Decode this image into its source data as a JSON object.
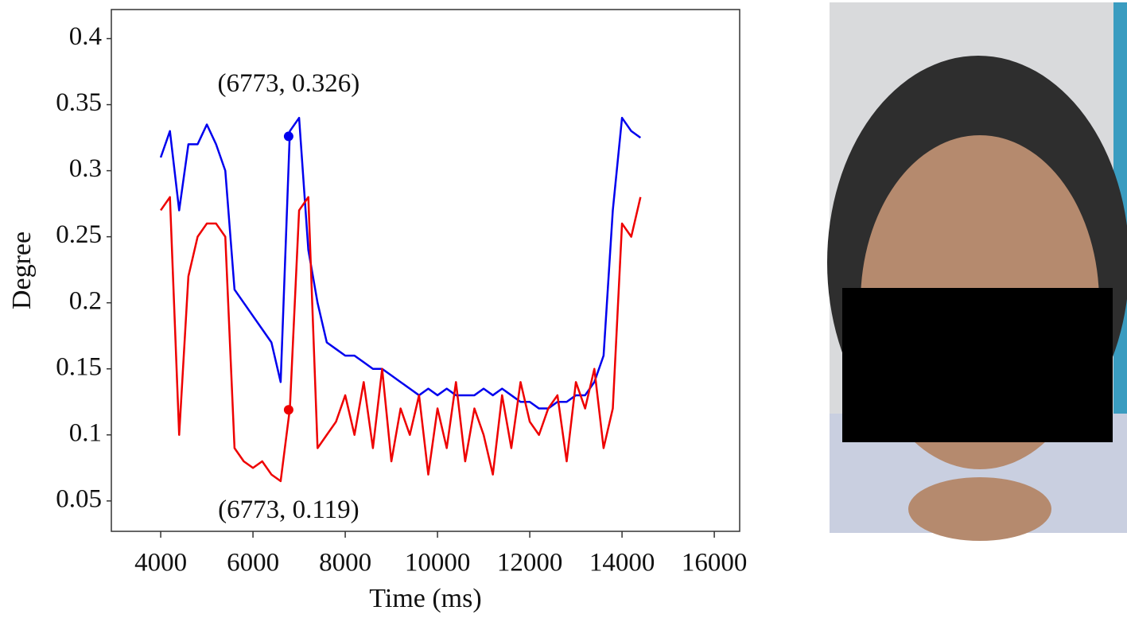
{
  "chart_data": {
    "type": "line",
    "x_label": "Time (ms)",
    "y_label": "Degree",
    "xlim": [
      2930,
      16550
    ],
    "ylim": [
      0.027,
      0.422
    ],
    "xticks": [
      4000,
      6000,
      8000,
      10000,
      12000,
      14000,
      16000
    ],
    "yticks": [
      0.05,
      0.1,
      0.15,
      0.2,
      0.25,
      0.3,
      0.35,
      0.4
    ],
    "x": [
      4000,
      4200,
      4400,
      4600,
      4800,
      5000,
      5200,
      5400,
      5600,
      5800,
      6000,
      6200,
      6400,
      6600,
      6800,
      7000,
      7200,
      7400,
      7600,
      7800,
      8000,
      8200,
      8400,
      8600,
      8800,
      9000,
      9200,
      9400,
      9600,
      9800,
      10000,
      10200,
      10400,
      10600,
      10800,
      11000,
      11200,
      11400,
      11600,
      11800,
      12000,
      12200,
      12400,
      12600,
      12800,
      13000,
      13200,
      13400,
      13600,
      13800,
      14000,
      14200,
      14400
    ],
    "series": [
      {
        "color": "#0000ee",
        "values": [
          0.31,
          0.33,
          0.27,
          0.32,
          0.32,
          0.335,
          0.32,
          0.3,
          0.21,
          0.2,
          0.19,
          0.18,
          0.17,
          0.14,
          0.33,
          0.34,
          0.24,
          0.2,
          0.17,
          0.165,
          0.16,
          0.16,
          0.155,
          0.15,
          0.15,
          0.145,
          0.14,
          0.135,
          0.13,
          0.135,
          0.13,
          0.135,
          0.13,
          0.13,
          0.13,
          0.135,
          0.13,
          0.135,
          0.13,
          0.125,
          0.125,
          0.12,
          0.12,
          0.125,
          0.125,
          0.13,
          0.13,
          0.14,
          0.16,
          0.27,
          0.34,
          0.33,
          0.325
        ]
      },
      {
        "color": "#ee0000",
        "values": [
          0.27,
          0.28,
          0.1,
          0.22,
          0.25,
          0.26,
          0.26,
          0.25,
          0.09,
          0.08,
          0.075,
          0.08,
          0.07,
          0.065,
          0.12,
          0.27,
          0.28,
          0.09,
          0.1,
          0.11,
          0.13,
          0.1,
          0.14,
          0.09,
          0.15,
          0.08,
          0.12,
          0.1,
          0.13,
          0.07,
          0.12,
          0.09,
          0.14,
          0.08,
          0.12,
          0.1,
          0.07,
          0.13,
          0.09,
          0.14,
          0.11,
          0.1,
          0.12,
          0.13,
          0.08,
          0.14,
          0.12,
          0.15,
          0.09,
          0.12,
          0.26,
          0.25,
          0.28
        ]
      }
    ],
    "annotations": [
      {
        "text": "(6773, 0.326)",
        "x": 6773,
        "y": 0.326,
        "color": "#0000ee",
        "position": "above"
      },
      {
        "text": "(6773, 0.119)",
        "x": 6773,
        "y": 0.119,
        "color": "#ee0000",
        "position": "below"
      }
    ]
  }
}
